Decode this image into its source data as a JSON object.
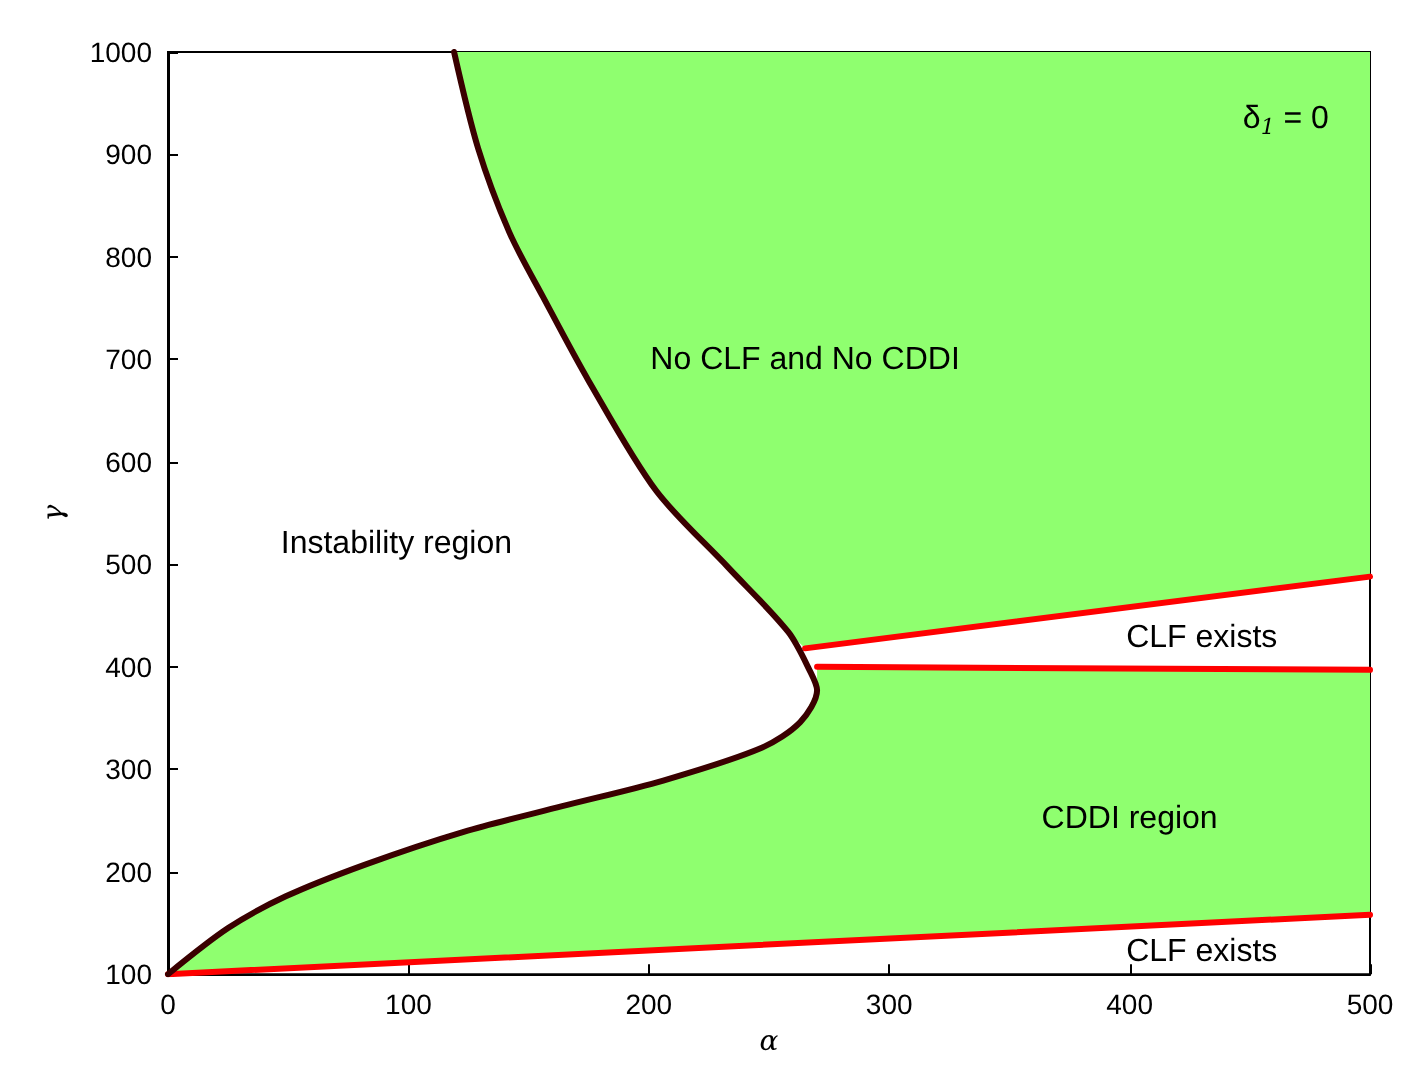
{
  "chart_data": {
    "type": "line",
    "xlabel": "α",
    "ylabel": "γ",
    "xlim": [
      0,
      500
    ],
    "ylim": [
      100,
      1000
    ],
    "xticks": [
      0,
      100,
      200,
      300,
      400,
      500
    ],
    "yticks": [
      100,
      200,
      300,
      400,
      500,
      600,
      700,
      800,
      900,
      1000
    ],
    "grid": false,
    "marker": "none",
    "line_style": "solid",
    "series": [
      {
        "type": "area",
        "color": "#8fff6f",
        "x": [
          119,
          129,
          142,
          156,
          175,
          203,
          233,
          258,
          265,
          500,
          500
        ],
        "values": [
          1000,
          906,
          824,
          761,
          679,
          572,
          497,
          434,
          418,
          488,
          1000
        ]
      },
      {
        "type": "area",
        "color": "#8fff6f",
        "x": [
          0,
          25,
          49,
          82,
          123,
          164,
          206,
          247,
          263,
          270,
          270,
          500,
          500
        ],
        "values": [
          100,
          145,
          176,
          207,
          239,
          264,
          289,
          321,
          346,
          377,
          400,
          397,
          158
        ]
      },
      {
        "color": "#ff0000",
        "x": [
          265,
          500
        ],
        "values": [
          418,
          488
        ]
      },
      {
        "color": "#ff0000",
        "x": [
          270,
          500
        ],
        "values": [
          400,
          397
        ]
      },
      {
        "color": "#ff0000",
        "x": [
          0,
          500
        ],
        "values": [
          100,
          158
        ]
      },
      {
        "color": "#3a0000",
        "x": [
          119,
          129,
          142,
          156,
          175,
          203,
          233,
          258,
          267,
          270,
          263,
          247,
          206,
          164,
          123,
          82,
          49,
          25,
          0
        ],
        "values": [
          1000,
          906,
          824,
          761,
          679,
          572,
          497,
          434,
          396,
          377,
          346,
          321,
          289,
          264,
          239,
          207,
          176,
          145,
          100
        ]
      }
    ],
    "annotations": [
      "Instability region",
      "No CLF and No CDDI",
      "CLF exists",
      "CDDI region",
      "CLF exists",
      "δ$_{1}$ = 0"
    ]
  }
}
